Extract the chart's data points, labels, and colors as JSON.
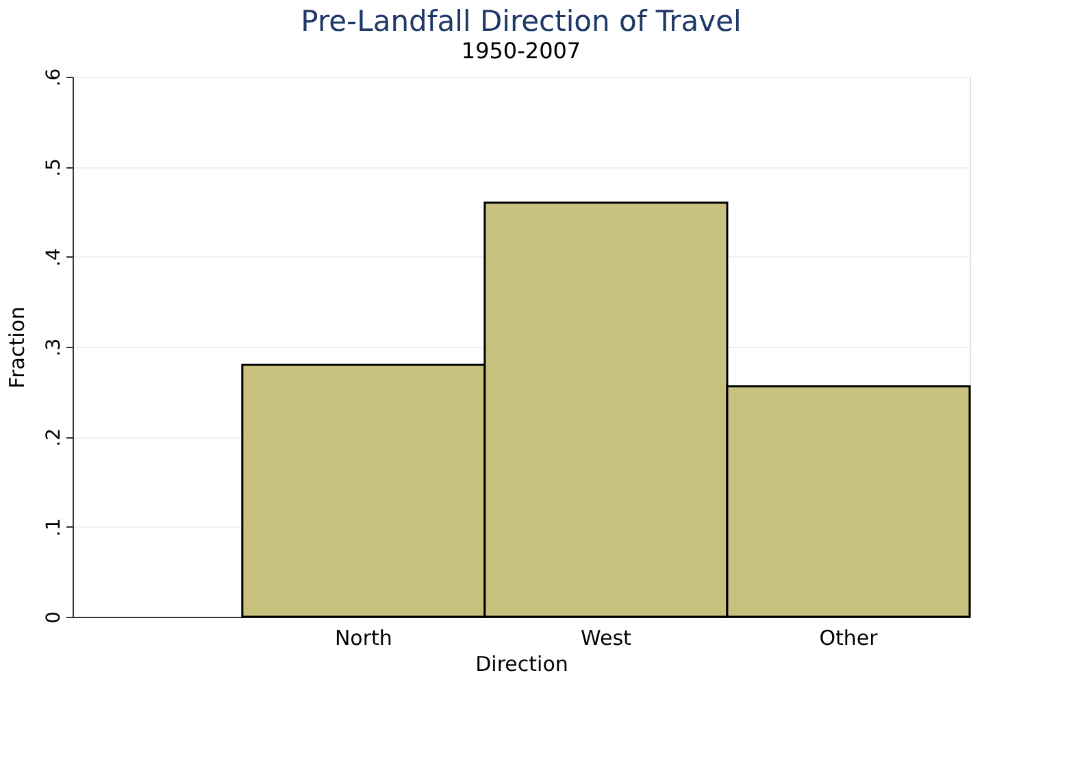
{
  "chart_data": {
    "type": "bar",
    "title": "Pre-Landfall Direction of Travel",
    "subtitle": "1950-2007",
    "xlabel": "Direction",
    "ylabel": "Fraction",
    "categories": [
      "North",
      "West",
      "Other"
    ],
    "values": [
      0.28,
      0.46,
      0.256
    ],
    "color": "#c9c27f",
    "ylim": [
      0,
      0.6
    ],
    "yticks": [
      0,
      {
        "value": 0.1,
        "label": ".1"
      },
      {
        "value": 0.2,
        "label": ".2"
      },
      {
        "value": 0.3,
        "label": ".3"
      },
      {
        "value": 0.4,
        "label": ".4"
      },
      {
        "value": 0.5,
        "label": ".5"
      },
      {
        "value": 0.6,
        "label": ".6"
      }
    ],
    "grid": "y"
  }
}
